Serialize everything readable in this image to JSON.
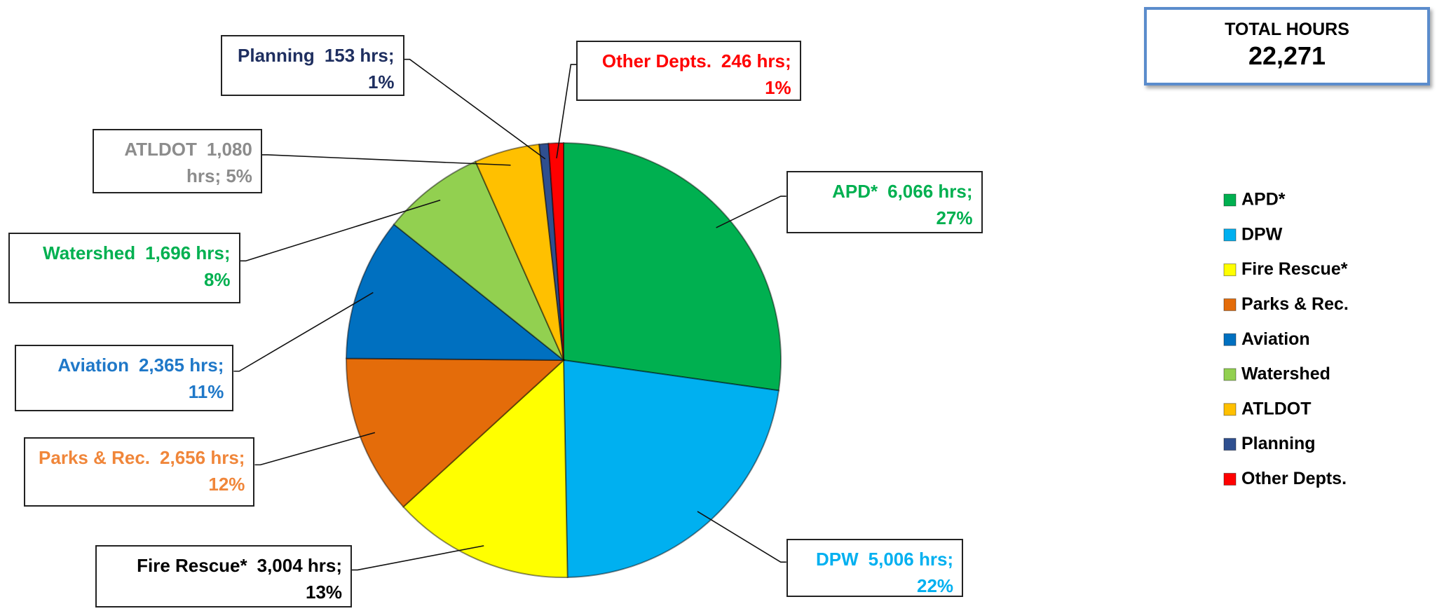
{
  "chart_data": {
    "type": "pie",
    "categories": [
      "APD*",
      "DPW",
      "Fire Rescue*",
      "Parks & Rec.",
      "Aviation",
      "Watershed",
      "ATLDOT",
      "Planning",
      "Other Depts."
    ],
    "values": [
      6066,
      5006,
      3004,
      2656,
      2365,
      1696,
      1080,
      153,
      246
    ],
    "value_labels": [
      "6,066 hrs; 27%",
      "5,006 hrs; 22%",
      "3,004 hrs; 13%",
      "2,656 hrs; 12%",
      "2,365 hrs; 11%",
      "1,696 hrs; 8%",
      "1,080 hrs; 5%",
      "153 hrs; 1%",
      "246 hrs; 1%"
    ],
    "colors": [
      "#00b050",
      "#00b0f0",
      "#ffff00",
      "#e46c0a",
      "#0070c0",
      "#92d050",
      "#ffc000",
      "#2f4f8f",
      "#ff0000"
    ],
    "label_colors": [
      "#00b050",
      "#00b0f0",
      "#000000",
      "#f0863a",
      "#1f78c8",
      "#00b050",
      "#8c8c8c",
      "#1f2f60",
      "#ff0000"
    ],
    "legend": true,
    "total": {
      "label": "TOTAL HOURS",
      "value": 22271,
      "value_label": "22,271"
    }
  }
}
